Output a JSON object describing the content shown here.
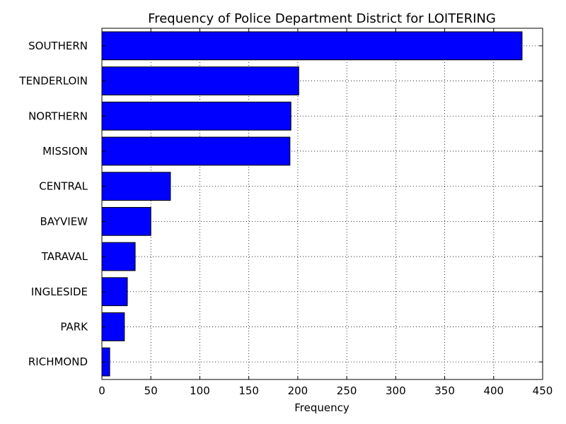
{
  "chart_data": {
    "type": "bar",
    "orientation": "horizontal",
    "title": "Frequency of Police Department District for LOITERING",
    "xlabel": "Frequency",
    "ylabel": "",
    "categories": [
      "SOUTHERN",
      "TENDERLOIN",
      "NORTHERN",
      "MISSION",
      "CENTRAL",
      "BAYVIEW",
      "TARAVAL",
      "INGLESIDE",
      "PARK",
      "RICHMOND"
    ],
    "values": [
      429,
      201,
      193,
      192,
      70,
      50,
      34,
      26,
      23,
      8
    ],
    "xlim": [
      0,
      450
    ],
    "xticks": [
      0,
      50,
      100,
      150,
      200,
      250,
      300,
      350,
      400,
      450
    ],
    "grid": true,
    "bar_color": "#0000ff",
    "edge_color": "#000000"
  }
}
